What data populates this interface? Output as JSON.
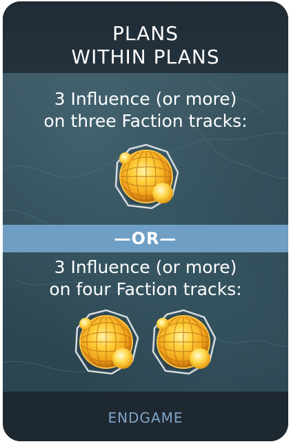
{
  "card": {
    "title_line_1": "PLANS",
    "title_line_2": "WITHIN PLANS",
    "requirement_1_line_1": "3 Influence (or more)",
    "requirement_1_line_2": "on three Faction tracks:",
    "separator": "—OR—",
    "requirement_2_line_1": "3 Influence (or more)",
    "requirement_2_line_2": "on four Faction tracks:",
    "footer": "ENDGAME"
  },
  "icons": {
    "influence_token": "influence-orb-icon"
  },
  "colors": {
    "title_band": "#1f2c36",
    "body": "#2f4a55",
    "or_band": "#6f9fc4",
    "footer_text": "#7fa6c9",
    "token_gold": "#f2a81c"
  }
}
